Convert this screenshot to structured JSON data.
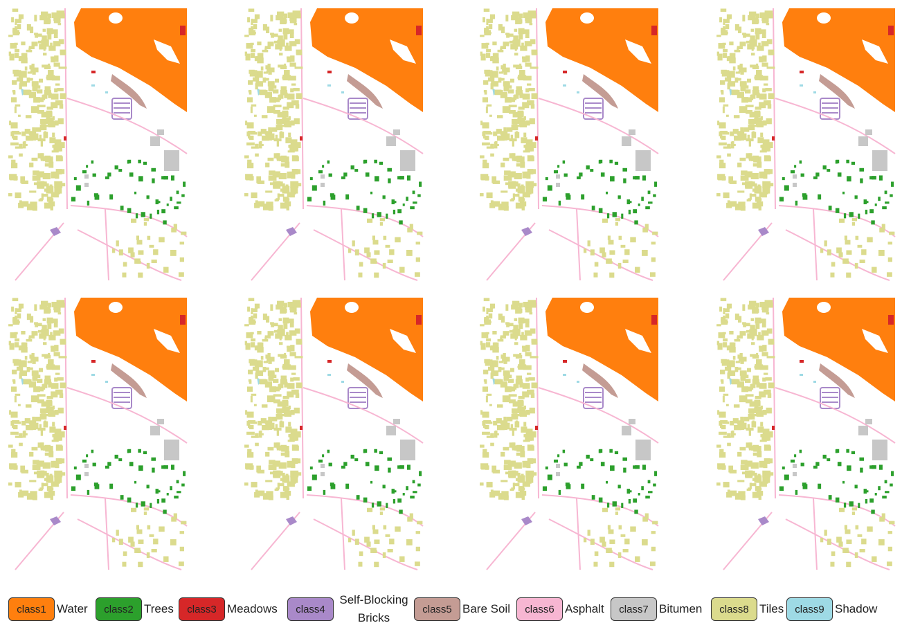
{
  "legend": {
    "items": [
      {
        "label": "class1",
        "name": "Water",
        "color": "#ff7f0e"
      },
      {
        "label": "class2",
        "name": "Trees",
        "color": "#2ca02c"
      },
      {
        "label": "class3",
        "name": "Meadows",
        "color": "#d62728"
      },
      {
        "label": "class4",
        "name": "Self-Blocking Bricks",
        "color": "#a989c9"
      },
      {
        "label": "class5",
        "name": "Bare Soil",
        "color": "#c49c94"
      },
      {
        "label": "class6",
        "name": "Asphalt",
        "color": "#f7b6d2"
      },
      {
        "label": "class7",
        "name": "Bitumen",
        "color": "#c7c7c7"
      },
      {
        "label": "class8",
        "name": "Tiles",
        "color": "#dbdb8d"
      },
      {
        "label": "class9",
        "name": "Shadow",
        "color": "#9edae5"
      }
    ]
  }
}
